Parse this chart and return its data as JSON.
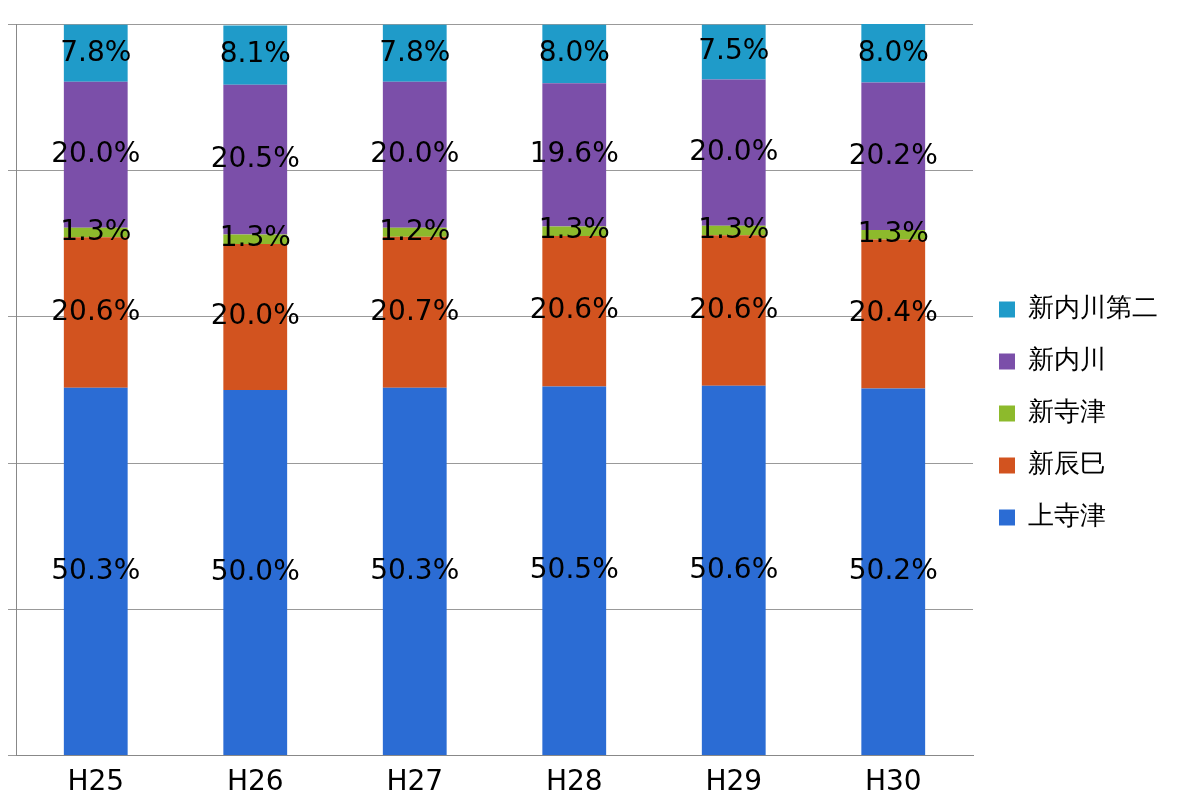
{
  "chart_data": {
    "type": "bar",
    "stacked": true,
    "categories": [
      "H25",
      "H26",
      "H27",
      "H28",
      "H29",
      "H30"
    ],
    "series": [
      {
        "name": "上寺津",
        "color": "#2b6cd4",
        "values": [
          50.3,
          50.0,
          50.3,
          50.5,
          50.6,
          50.2
        ],
        "value_labels": [
          "50.3%",
          "50.0%",
          "50.3%",
          "50.5%",
          "50.6%",
          "50.2%"
        ]
      },
      {
        "name": "新辰巳",
        "color": "#d2531f",
        "values": [
          20.6,
          20.0,
          20.7,
          20.6,
          20.6,
          20.4
        ],
        "value_labels": [
          "20.6%",
          "20.0%",
          "20.7%",
          "20.6%",
          "20.6%",
          "20.4%"
        ]
      },
      {
        "name": "新寺津",
        "color": "#8dba2c",
        "values": [
          1.3,
          1.3,
          1.2,
          1.3,
          1.3,
          1.3
        ],
        "value_labels": [
          "1.3%",
          "1.3%",
          "1.2%",
          "1.3%",
          "1.3%",
          "1.3%"
        ]
      },
      {
        "name": "新内川",
        "color": "#7b4fa9",
        "values": [
          20.0,
          20.5,
          20.0,
          19.6,
          20.0,
          20.2
        ],
        "value_labels": [
          "20.0%",
          "20.5%",
          "20.0%",
          "19.6%",
          "20.0%",
          "20.2%"
        ]
      },
      {
        "name": "新内川第二",
        "color": "#1f9bc9",
        "values": [
          7.8,
          8.1,
          7.8,
          8.0,
          7.5,
          8.0
        ],
        "value_labels": [
          "7.8%",
          "8.1%",
          "7.8%",
          "8.0%",
          "7.5%",
          "8.0%"
        ]
      }
    ],
    "tick_labels": "x",
    "grid": "y",
    "legend": "right"
  }
}
